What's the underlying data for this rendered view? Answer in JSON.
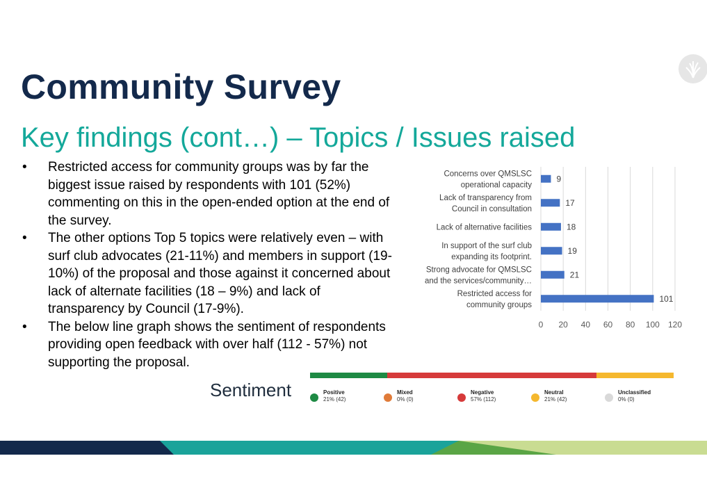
{
  "header": {
    "title": "Community Survey",
    "subtitle": "Key findings (cont…) – Topics / Issues raised"
  },
  "icons": {
    "logo": "leaf-logo-icon"
  },
  "bullet_symbol": "•",
  "bullets": [
    "Restricted access for community groups was by far the biggest issue raised by respondents with 101 (52%) commenting on this in the open-ended option at the end of the survey.",
    "The other options Top 5 topics were relatively even – with surf club advocates (21-11%) and members in support (19-10%) of the proposal and those against it concerned about lack of alternate facilities (18 – 9%) and lack of transparency by Council (17-9%).",
    "The below line graph shows the sentiment of respondents providing open feedback with over half (112 - 57%) not supporting the proposal."
  ],
  "chart_data": [
    {
      "type": "bar",
      "orientation": "horizontal",
      "categories": [
        [
          "Concerns over QMSLSC",
          "operational capacity"
        ],
        [
          "Lack of transparency from",
          "Council in consultation"
        ],
        [
          "Lack of alternative facilities"
        ],
        [
          "In support of the surf club",
          "expanding its footprint."
        ],
        [
          "Strong advocate for QMSLSC",
          "and the services/community…"
        ],
        [
          "Restricted access for",
          "community groups"
        ]
      ],
      "values": [
        9,
        17,
        18,
        19,
        21,
        101
      ],
      "xlim": [
        0,
        120
      ],
      "xticks": [
        0,
        20,
        40,
        60,
        80,
        100,
        120
      ],
      "grid": true,
      "bar_color": "#4472c4"
    },
    {
      "type": "stacked-bar",
      "title": "Sentiment",
      "series": [
        {
          "name": "Positive",
          "label": "21% (42)",
          "percent": 21,
          "count": 42,
          "color": "#1e8a44"
        },
        {
          "name": "Mixed",
          "label": "0% (0)",
          "percent": 0,
          "count": 0,
          "color": "#e07b39"
        },
        {
          "name": "Negative",
          "label": "57% (112)",
          "percent": 57,
          "count": 112,
          "color": "#d63a3a"
        },
        {
          "name": "Neutral",
          "label": "21% (42)",
          "percent": 21,
          "count": 42,
          "color": "#f5b82e"
        },
        {
          "name": "Unclassified",
          "label": "0% (0)",
          "percent": 0,
          "count": 0,
          "color": "#d9d9d9"
        }
      ]
    }
  ],
  "colors": {
    "title": "#13294b",
    "subtitle": "#14a89a",
    "footer_navy": "#13294b",
    "footer_teal": "#1aa39a",
    "footer_green": "#5aa545",
    "footer_light": "#c9dc92"
  }
}
